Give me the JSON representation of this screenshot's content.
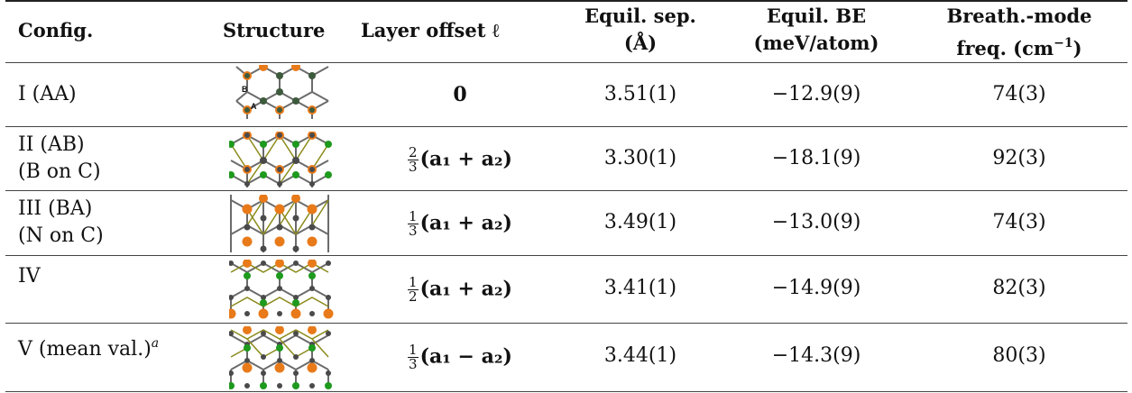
{
  "headers": {
    "config": "Config.",
    "structure": "Structure",
    "offset": "Layer offset ℓ",
    "sep_line1": "Equil. sep.",
    "sep_line2": "(Å)",
    "be_line1": "Equil. BE",
    "be_line2": "(meV/atom)",
    "freq_line1": "Breath.-mode",
    "freq_line2_text": "freq. (cm",
    "freq_line2_sup": "−1",
    "freq_line2_end": ")"
  },
  "rows": [
    {
      "config_line1": "I (AA)",
      "config_line2": "",
      "thumb_labels": [
        "B",
        "A"
      ],
      "offset_plain": "0",
      "sep": "3.51(1)",
      "be": "−12.9(9)",
      "freq": "74(3)"
    },
    {
      "config_line1": "II (AB)",
      "config_line2": "(B on C)",
      "offset_num": "2",
      "offset_den": "3",
      "offset_expr": "(a₁ + a₂)",
      "sep": "3.30(1)",
      "be": "−18.1(9)",
      "freq": "92(3)"
    },
    {
      "config_line1": "III (BA)",
      "config_line2": "(N on C)",
      "offset_num": "1",
      "offset_den": "3",
      "offset_expr": "(a₁ + a₂)",
      "sep": "3.49(1)",
      "be": "−13.0(9)",
      "freq": "74(3)"
    },
    {
      "config_line1": "IV",
      "config_line2": "",
      "offset_num": "1",
      "offset_den": "2",
      "offset_expr": "(a₁ + a₂)",
      "sep": "3.41(1)",
      "be": "−14.9(9)",
      "freq": "82(3)"
    },
    {
      "config_line1": "V (mean val.)",
      "config_sup": "a",
      "config_line2": "",
      "offset_num": "1",
      "offset_den": "3",
      "offset_expr": "(a₁ − a₂)",
      "sep": "3.44(1)",
      "be": "−14.3(9)",
      "freq": "80(3)"
    }
  ],
  "colors": {
    "boron_orange": "#e87a1a",
    "nitrogen_green": "#1e9a1e",
    "carbon_gray": "#4a4a4a",
    "bond_gray": "#6b6b6b",
    "bond_olive": "#8a8a1a"
  }
}
